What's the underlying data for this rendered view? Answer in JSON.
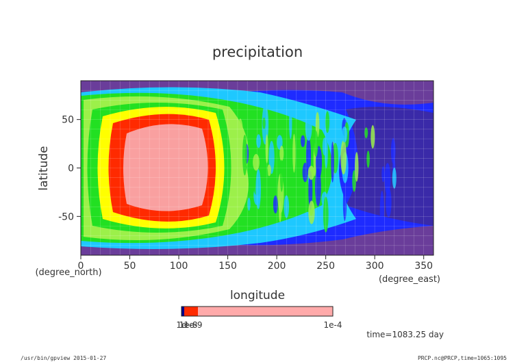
{
  "chart_data": {
    "type": "heatmap",
    "title": "precipitation",
    "xlabel": "longitude",
    "ylabel": "latitude",
    "x_unit": "(degree_east)",
    "y_unit": "(degree_north)",
    "xlim": [
      0,
      360
    ],
    "ylim": [
      -90,
      90
    ],
    "x_ticks": [
      0,
      50,
      100,
      150,
      200,
      250,
      300,
      350
    ],
    "y_ticks": [
      -50,
      0,
      50
    ],
    "colorbar": {
      "end_label": "1e-4",
      "start_labels": [
        "1e-",
        "1e-8",
        "1e-9"
      ],
      "colors": [
        "#00008b",
        "#ff0000",
        "#ff6666",
        "#ffaaaa"
      ]
    },
    "time_label": "time=1083.25 day",
    "palette": {
      "purple": "#6a3d9a",
      "blue": "#1e2bff",
      "cyan": "#1ec8ff",
      "green": "#22e022",
      "lightgreen": "#9cf04a",
      "yellow": "#ffff00",
      "red": "#ff2a00",
      "pink": "#f9a0a0"
    }
  },
  "footer": {
    "left": "/usr/bin/gpview  2015-01-27",
    "right": "PRCP.nc@PRCP,time=1065:1095"
  }
}
